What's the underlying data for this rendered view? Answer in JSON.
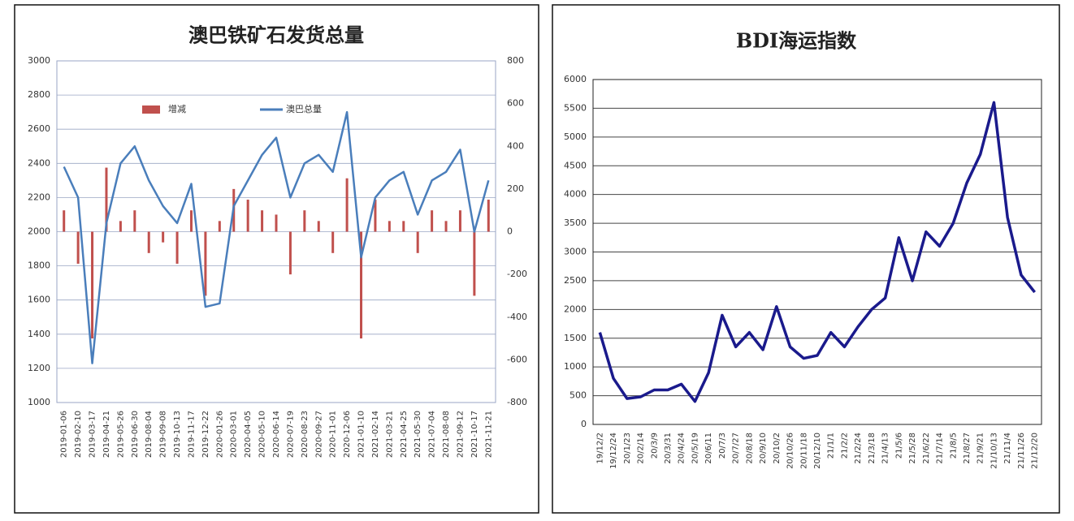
{
  "chart_data": [
    {
      "type": "combo",
      "title": "澳巴铁矿石发货总量",
      "categories": [
        "2019-01-06",
        "2019-02-10",
        "2019-03-17",
        "2019-04-21",
        "2019-05-26",
        "2019-06-30",
        "2019-08-04",
        "2019-09-08",
        "2019-10-13",
        "2019-11-17",
        "2019-12-22",
        "2020-01-26",
        "2020-03-01",
        "2020-04-05",
        "2020-05-10",
        "2020-06-14",
        "2020-07-19",
        "2020-08-23",
        "2020-09-27",
        "2020-11-01",
        "2020-12-06",
        "2021-01-10",
        "2021-02-14",
        "2021-03-21",
        "2021-04-25",
        "2021-05-30",
        "2021-07-04",
        "2021-08-08",
        "2021-09-12",
        "2021-10-17",
        "2021-11-21"
      ],
      "series": [
        {
          "name": "增减",
          "kind": "bar",
          "axis": "y2",
          "color": "#c0504d",
          "values": [
            100,
            -150,
            -500,
            300,
            50,
            100,
            -100,
            -50,
            -150,
            100,
            -300,
            50,
            200,
            150,
            100,
            80,
            -200,
            100,
            50,
            -100,
            250,
            -500,
            150,
            50,
            50,
            -100,
            100,
            50,
            100,
            -300,
            150
          ]
        },
        {
          "name": "澳巴总量",
          "kind": "line",
          "color": "#4a7ebb",
          "values": [
            2380,
            2200,
            1230,
            2050,
            2400,
            2500,
            2300,
            2150,
            2050,
            2280,
            1560,
            1580,
            2150,
            2300,
            2450,
            2550,
            2200,
            2400,
            2450,
            2350,
            2700,
            1850,
            2200,
            2300,
            2350,
            2100,
            2300,
            2350,
            2480,
            2000,
            2300
          ]
        }
      ],
      "ylim": [
        1000,
        3000
      ],
      "yticks": [
        1000,
        1200,
        1400,
        1600,
        1800,
        2000,
        2200,
        2400,
        2600,
        2800,
        3000
      ],
      "y2lim": [
        -800,
        800
      ],
      "y2ticks": [
        -800,
        -600,
        -400,
        -200,
        0,
        200,
        400,
        600,
        800
      ],
      "grid": true
    },
    {
      "type": "line",
      "title": "BDI海运指数",
      "categories": [
        "19/12/2",
        "19/12/24",
        "20/1/23",
        "20/2/14",
        "20/3/9",
        "20/3/31",
        "20/4/24",
        "20/5/19",
        "20/6/11",
        "20/7/3",
        "20/7/27",
        "20/8/18",
        "20/9/10",
        "20/10/2",
        "20/10/26",
        "20/11/18",
        "20/12/10",
        "21/1/1",
        "21/2/2",
        "21/2/24",
        "21/3/18",
        "21/4/13",
        "21/5/6",
        "21/5/28",
        "21/6/22",
        "21/7/14",
        "21/8/5",
        "21/8/27",
        "21/9/21",
        "21/10/13",
        "21/11/4",
        "21/11/26",
        "21/12/20"
      ],
      "series": [
        {
          "name": "BDI",
          "color": "#1a1a8c",
          "values": [
            1600,
            800,
            450,
            480,
            600,
            600,
            700,
            400,
            900,
            1900,
            1350,
            1600,
            1300,
            2050,
            1350,
            1150,
            1200,
            1600,
            1350,
            1700,
            2000,
            2200,
            3250,
            2500,
            3350,
            3100,
            3500,
            4200,
            4700,
            5600,
            3600,
            2600,
            2300
          ]
        }
      ],
      "ylim": [
        0,
        6000
      ],
      "yticks": [
        0,
        500,
        1000,
        1500,
        2000,
        2500,
        3000,
        3500,
        4000,
        4500,
        5000,
        5500,
        6000
      ],
      "grid": true
    }
  ]
}
